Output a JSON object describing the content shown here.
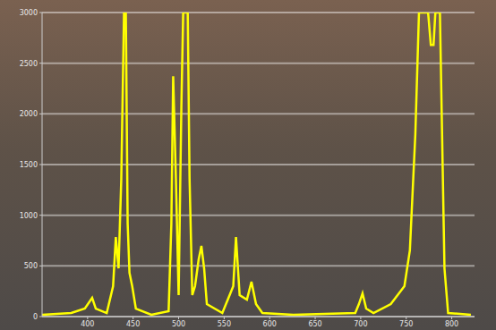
{
  "chart_data": {
    "type": "line",
    "x": [
      350,
      382,
      397,
      405,
      409,
      421,
      428,
      431,
      434,
      437,
      440,
      442,
      444,
      446,
      449,
      453,
      470,
      489,
      492,
      494,
      497,
      500,
      503,
      505,
      510,
      512,
      515,
      518,
      522,
      525,
      528,
      531,
      548,
      560,
      563,
      567,
      575,
      580,
      585,
      592,
      626,
      694,
      698,
      702,
      706,
      714,
      733,
      748,
      754,
      760,
      764,
      774,
      777,
      780,
      782,
      787,
      792,
      796,
      821
    ],
    "values": [
      18,
      35,
      79,
      185,
      79,
      35,
      300,
      785,
      476,
      1358,
      3000,
      3000,
      917,
      432,
      300,
      79,
      18,
      53,
      917,
      2372,
      1358,
      212,
      2064,
      3000,
      3000,
      1358,
      212,
      300,
      564,
      697,
      476,
      123,
      35,
      300,
      785,
      212,
      168,
      344,
      123,
      35,
      18,
      35,
      123,
      229,
      79,
      35,
      123,
      300,
      653,
      1799,
      3000,
      3000,
      2681,
      2681,
      3000,
      3000,
      476,
      35,
      18
    ],
    "color": "#ffff00",
    "xlim": [
      350,
      825
    ],
    "xticks": [
      400,
      450,
      500,
      550,
      600,
      650,
      700,
      750,
      800
    ],
    "ylim": [
      0,
      3000
    ],
    "yticks": [
      0,
      500,
      1000,
      1500,
      2000,
      2500,
      3000
    ],
    "grid": true
  }
}
